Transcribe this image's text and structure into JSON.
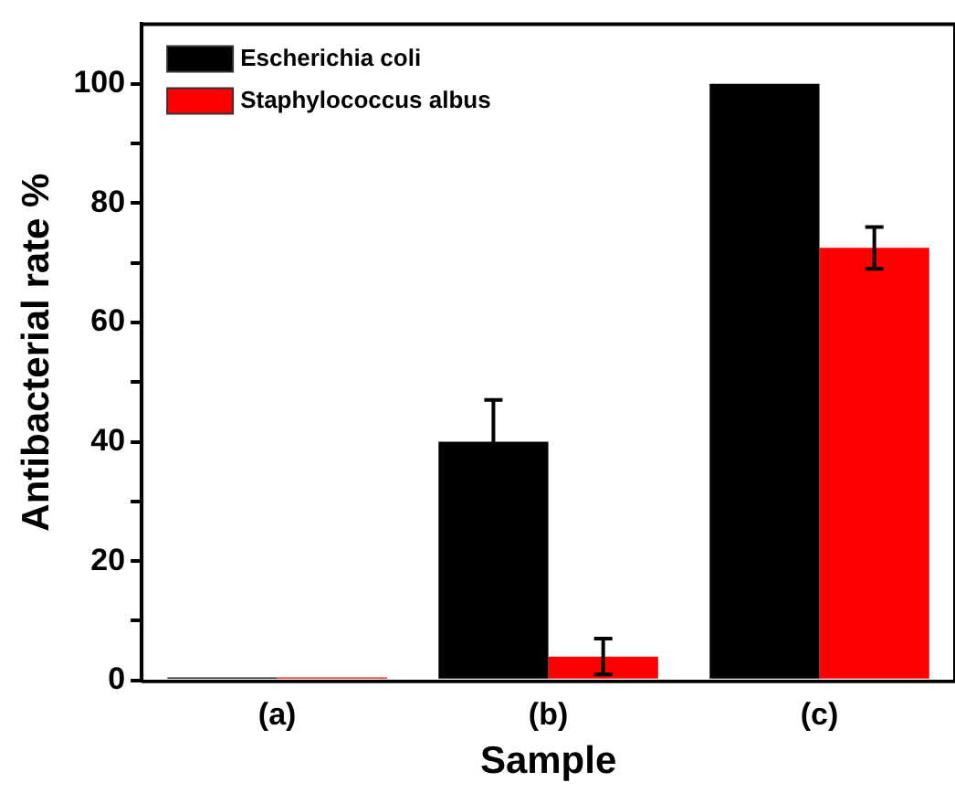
{
  "chart_data": {
    "type": "bar",
    "xlabel": "Sample",
    "ylabel": "Antibacterial rate %",
    "categories": [
      "(a)",
      "(b)",
      "(c)"
    ],
    "series": [
      {
        "name": "Escherichia coli",
        "color": "#000000",
        "values": [
          0.5,
          40,
          100
        ],
        "errors": [
          null,
          7,
          null
        ]
      },
      {
        "name": "Staphylococcus albus",
        "color": "#ff0000",
        "values": [
          0.5,
          4,
          72.5
        ],
        "errors": [
          null,
          3,
          3.5
        ]
      }
    ],
    "ylim": [
      0,
      110
    ],
    "yticks": [
      0,
      {
        "value": 10,
        "label": null
      },
      20,
      {
        "value": 30,
        "label": null
      },
      40,
      {
        "value": 50,
        "label": null
      },
      60,
      {
        "value": 70,
        "label": null
      },
      80,
      {
        "value": 90,
        "label": null
      },
      100
    ],
    "grid": false,
    "legend": "top left"
  }
}
